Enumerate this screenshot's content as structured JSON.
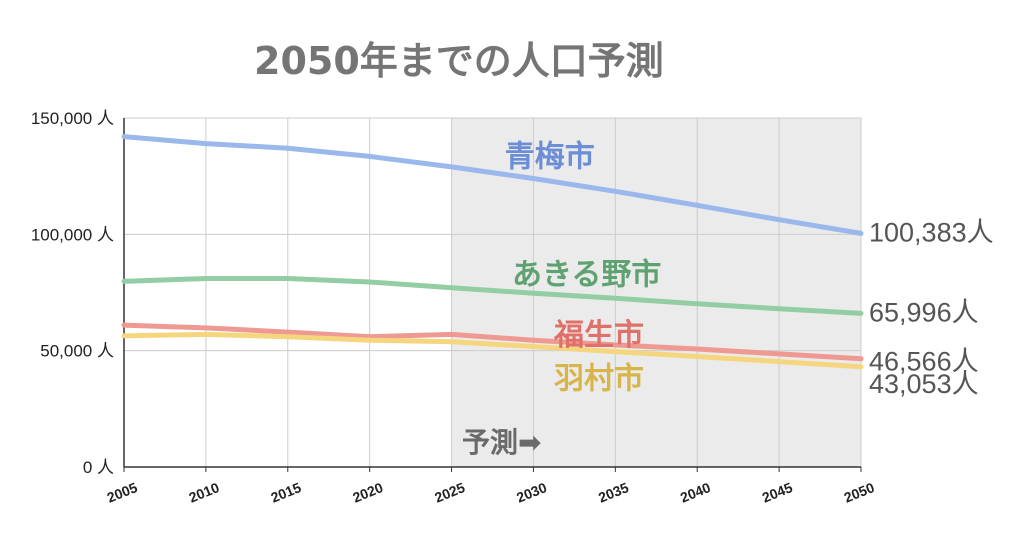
{
  "chart_data": {
    "type": "line",
    "title": "2050年までの人口予測",
    "x": [
      2005,
      2010,
      2015,
      2020,
      2025,
      2030,
      2035,
      2040,
      2045,
      2050
    ],
    "x_tick_labels": [
      "2005",
      "2010",
      "2015",
      "2020",
      "2025",
      "2030",
      "2035",
      "2040",
      "2045",
      "2050"
    ],
    "y_tick_labels": [
      "150,000 人",
      "100,000 人",
      "50,000 人",
      "0 人"
    ],
    "y_ticks": [
      150000,
      100000,
      50000,
      0
    ],
    "ylim": [
      0,
      150000
    ],
    "grid": true,
    "forecast_region": {
      "x_start": 2025,
      "x_end": 2050,
      "label": "予測➡"
    },
    "series": [
      {
        "name": "青梅市",
        "color": "#9ab8ec",
        "label_color": "#6c8ed6",
        "values": [
          142000,
          139000,
          137000,
          133500,
          129000,
          124000,
          118500,
          112500,
          106300,
          100383
        ],
        "end_label": "100,383人"
      },
      {
        "name": "あきる野市",
        "color": "#93cda3",
        "label_color": "#5fa271",
        "values": [
          79800,
          81000,
          81000,
          79500,
          77000,
          74700,
          72500,
          70200,
          68000,
          65996
        ],
        "end_label": "65,996人"
      },
      {
        "name": "福生市",
        "color": "#ee9a92",
        "label_color": "#e0706a",
        "values": [
          61000,
          59800,
          58000,
          56000,
          57000,
          54500,
          52500,
          50700,
          48600,
          46566
        ],
        "end_label": "46,566人"
      },
      {
        "name": "羽村市",
        "color": "#f5d67e",
        "label_color": "#d8b548",
        "values": [
          56400,
          57000,
          56000,
          54500,
          53800,
          51800,
          49600,
          47500,
          45300,
          43053
        ],
        "end_label": "43,053人"
      }
    ]
  }
}
